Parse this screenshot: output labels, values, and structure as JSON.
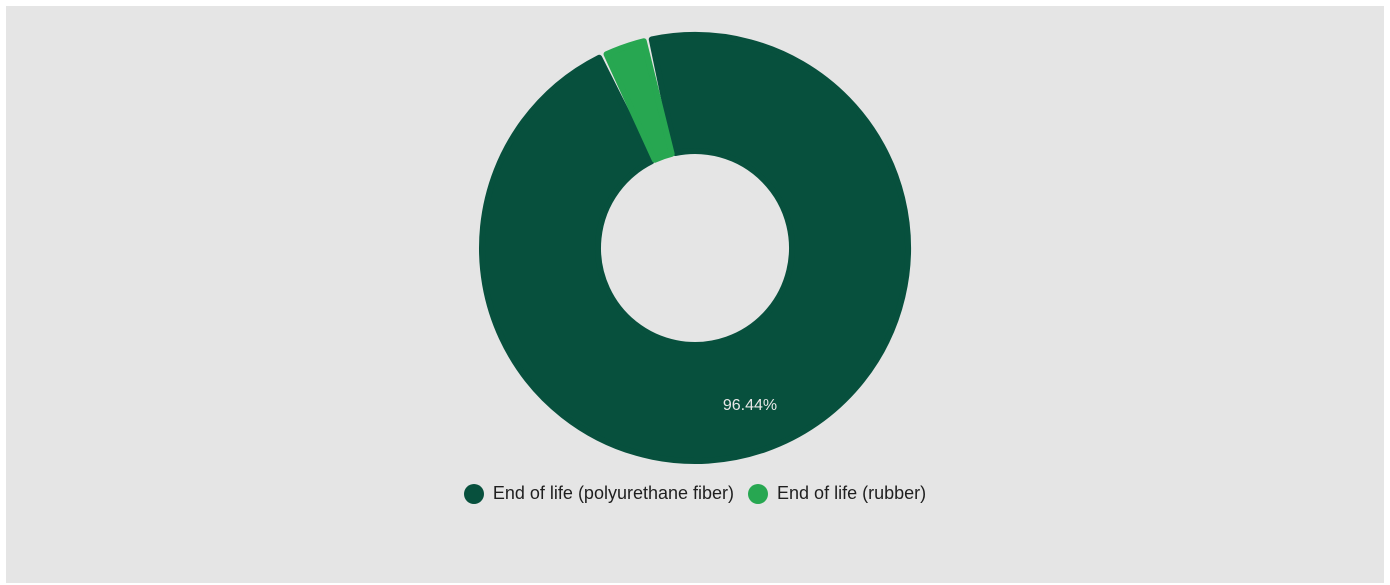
{
  "chart_data": {
    "type": "pie",
    "variant": "donut",
    "title": "",
    "categories": [
      "End of life (polyurethane fiber)",
      "End of life (rubber)"
    ],
    "values": [
      96.44,
      3.56
    ],
    "colors": [
      "#07503d",
      "#27a751"
    ],
    "data_labels": [
      "96.44%",
      ""
    ],
    "legend_position": "bottom"
  },
  "legend": {
    "items": [
      {
        "label": "End of life (polyurethane fiber)",
        "color": "#07503d"
      },
      {
        "label": "End of life (rubber)",
        "color": "#27a751"
      }
    ]
  }
}
